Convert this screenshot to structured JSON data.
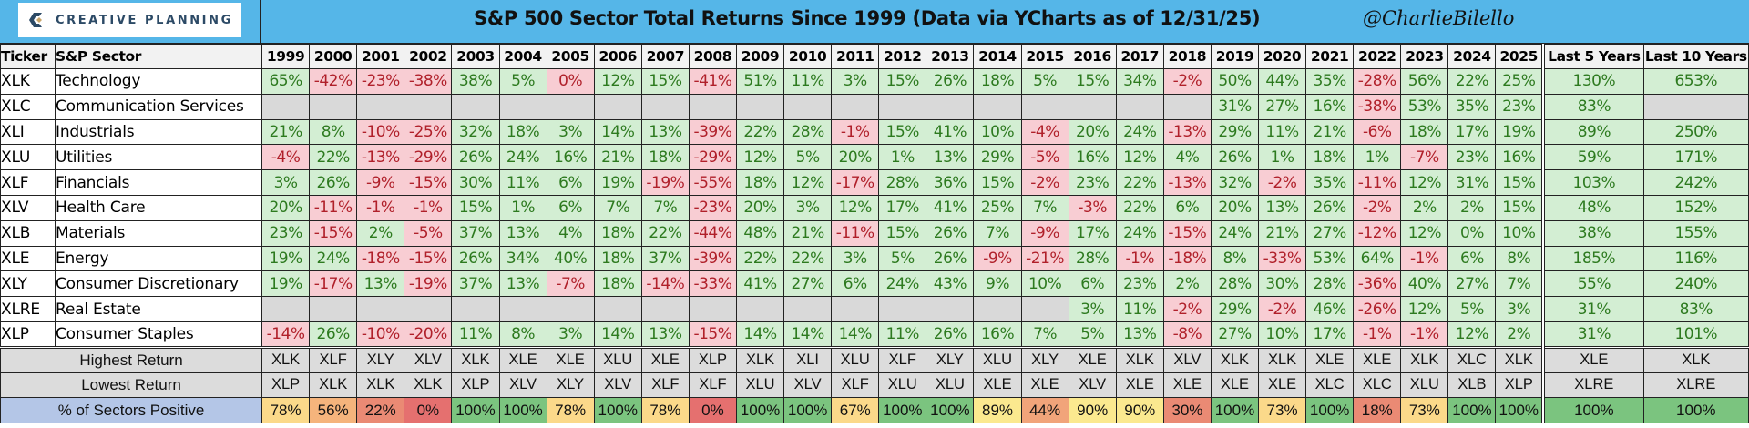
{
  "header": {
    "logo_text": "CREATIVE PLANNING",
    "title": "S&P 500 Sector Total Returns Since 1999 (Data via YCharts as of 12/31/25)",
    "handle": "@CharlieBilello"
  },
  "table": {
    "col_ticker": "Ticker",
    "col_sector": "S&P Sector",
    "years": [
      "1999",
      "2000",
      "2001",
      "2002",
      "2003",
      "2004",
      "2005",
      "2006",
      "2007",
      "2008",
      "2009",
      "2010",
      "2011",
      "2012",
      "2013",
      "2014",
      "2015",
      "2016",
      "2017",
      "2018",
      "2019",
      "2020",
      "2021",
      "2022",
      "2023",
      "2024",
      "2025"
    ],
    "col_last5": "Last 5 Years",
    "col_last10": "Last 10 Years",
    "summary_labels": {
      "highest": "Highest Return",
      "lowest": "Lowest Return",
      "pct_positive": "% of Sectors Positive"
    }
  },
  "colors": {
    "title_bar": "#55b6e8",
    "positive_bg": "#d3eed3",
    "positive_text": "#2d7a1f",
    "negative_bg": "#f8cdd3",
    "negative_text": "#b0202a",
    "no_data": "#d9d9d9",
    "pct_label_bg": "#b4c6e7"
  },
  "chart_data": {
    "type": "table",
    "title": "S&P 500 Sector Total Returns Since 1999 (Data via YCharts as of 12/31/25)",
    "source_note": "@CharlieBilello",
    "columns": [
      "Ticker",
      "S&P Sector",
      "1999",
      "2000",
      "2001",
      "2002",
      "2003",
      "2004",
      "2005",
      "2006",
      "2007",
      "2008",
      "2009",
      "2010",
      "2011",
      "2012",
      "2013",
      "2014",
      "2015",
      "2016",
      "2017",
      "2018",
      "2019",
      "2020",
      "2021",
      "2022",
      "2023",
      "2024",
      "2025",
      "Last 5 Years",
      "Last 10 Years"
    ],
    "rows": [
      {
        "ticker": "XLK",
        "sector": "Technology",
        "values": [
          "65%",
          "-42%",
          "-23%",
          "-38%",
          "38%",
          "5%",
          "0%",
          "12%",
          "15%",
          "-41%",
          "51%",
          "11%",
          "3%",
          "15%",
          "26%",
          "18%",
          "5%",
          "15%",
          "34%",
          "-2%",
          "50%",
          "44%",
          "35%",
          "-28%",
          "56%",
          "22%",
          "25%"
        ],
        "last5": "130%",
        "last10": "653%",
        "neg_zero": [
          6
        ]
      },
      {
        "ticker": "XLC",
        "sector": "Communication Services",
        "values": [
          "",
          "",
          "",
          "",
          "",
          "",
          "",
          "",
          "",
          "",
          "",
          "",
          "",
          "",
          "",
          "",
          "",
          "",
          "",
          "",
          "31%",
          "27%",
          "16%",
          "-38%",
          "53%",
          "35%",
          "23%"
        ],
        "last5": "83%",
        "last10": ""
      },
      {
        "ticker": "XLI",
        "sector": "Industrials",
        "values": [
          "21%",
          "8%",
          "-10%",
          "-25%",
          "32%",
          "18%",
          "3%",
          "14%",
          "13%",
          "-39%",
          "22%",
          "28%",
          "-1%",
          "15%",
          "41%",
          "10%",
          "-4%",
          "20%",
          "24%",
          "-13%",
          "29%",
          "11%",
          "21%",
          "-6%",
          "18%",
          "17%",
          "19%"
        ],
        "last5": "89%",
        "last10": "250%"
      },
      {
        "ticker": "XLU",
        "sector": "Utilities",
        "values": [
          "-4%",
          "22%",
          "-13%",
          "-29%",
          "26%",
          "24%",
          "16%",
          "21%",
          "18%",
          "-29%",
          "12%",
          "5%",
          "20%",
          "1%",
          "13%",
          "29%",
          "-5%",
          "16%",
          "12%",
          "4%",
          "26%",
          "1%",
          "18%",
          "1%",
          "-7%",
          "23%",
          "16%"
        ],
        "last5": "59%",
        "last10": "171%"
      },
      {
        "ticker": "XLF",
        "sector": "Financials",
        "values": [
          "3%",
          "26%",
          "-9%",
          "-15%",
          "30%",
          "11%",
          "6%",
          "19%",
          "-19%",
          "-55%",
          "18%",
          "12%",
          "-17%",
          "28%",
          "36%",
          "15%",
          "-2%",
          "23%",
          "22%",
          "-13%",
          "32%",
          "-2%",
          "35%",
          "-11%",
          "12%",
          "31%",
          "15%"
        ],
        "last5": "103%",
        "last10": "242%"
      },
      {
        "ticker": "XLV",
        "sector": "Health Care",
        "values": [
          "20%",
          "-11%",
          "-1%",
          "-1%",
          "15%",
          "1%",
          "6%",
          "7%",
          "7%",
          "-23%",
          "20%",
          "3%",
          "12%",
          "17%",
          "41%",
          "25%",
          "7%",
          "-3%",
          "22%",
          "6%",
          "20%",
          "13%",
          "26%",
          "-2%",
          "2%",
          "2%",
          "15%"
        ],
        "last5": "48%",
        "last10": "152%"
      },
      {
        "ticker": "XLB",
        "sector": "Materials",
        "values": [
          "23%",
          "-15%",
          "2%",
          "-5%",
          "37%",
          "13%",
          "4%",
          "18%",
          "22%",
          "-44%",
          "48%",
          "21%",
          "-11%",
          "15%",
          "26%",
          "7%",
          "-9%",
          "17%",
          "24%",
          "-15%",
          "24%",
          "21%",
          "27%",
          "-12%",
          "12%",
          "0%",
          "10%"
        ],
        "last5": "38%",
        "last10": "155%"
      },
      {
        "ticker": "XLE",
        "sector": "Energy",
        "values": [
          "19%",
          "24%",
          "-18%",
          "-15%",
          "26%",
          "34%",
          "40%",
          "18%",
          "37%",
          "-39%",
          "22%",
          "22%",
          "3%",
          "5%",
          "26%",
          "-9%",
          "-21%",
          "28%",
          "-1%",
          "-18%",
          "8%",
          "-33%",
          "53%",
          "64%",
          "-1%",
          "6%",
          "8%"
        ],
        "last5": "185%",
        "last10": "116%"
      },
      {
        "ticker": "XLY",
        "sector": "Consumer Discretionary",
        "values": [
          "19%",
          "-17%",
          "13%",
          "-19%",
          "37%",
          "13%",
          "-7%",
          "18%",
          "-14%",
          "-33%",
          "41%",
          "27%",
          "6%",
          "24%",
          "43%",
          "9%",
          "10%",
          "6%",
          "23%",
          "2%",
          "28%",
          "30%",
          "28%",
          "-36%",
          "40%",
          "27%",
          "7%"
        ],
        "last5": "55%",
        "last10": "240%"
      },
      {
        "ticker": "XLRE",
        "sector": "Real Estate",
        "values": [
          "",
          "",
          "",
          "",
          "",
          "",
          "",
          "",
          "",
          "",
          "",
          "",
          "",
          "",
          "",
          "",
          "",
          "3%",
          "11%",
          "-2%",
          "29%",
          "-2%",
          "46%",
          "-26%",
          "12%",
          "5%",
          "3%"
        ],
        "last5": "31%",
        "last10": "83%"
      },
      {
        "ticker": "XLP",
        "sector": "Consumer Staples",
        "values": [
          "-14%",
          "26%",
          "-10%",
          "-20%",
          "11%",
          "8%",
          "3%",
          "14%",
          "13%",
          "-15%",
          "14%",
          "14%",
          "14%",
          "11%",
          "26%",
          "16%",
          "7%",
          "5%",
          "13%",
          "-8%",
          "27%",
          "10%",
          "17%",
          "-1%",
          "-1%",
          "12%",
          "2%"
        ],
        "last5": "31%",
        "last10": "101%"
      }
    ],
    "summary": {
      "highest": {
        "values": [
          "XLK",
          "XLF",
          "XLY",
          "XLV",
          "XLK",
          "XLE",
          "XLE",
          "XLU",
          "XLE",
          "XLP",
          "XLK",
          "XLI",
          "XLU",
          "XLF",
          "XLY",
          "XLU",
          "XLY",
          "XLE",
          "XLK",
          "XLV",
          "XLK",
          "XLK",
          "XLE",
          "XLE",
          "XLK",
          "XLC",
          "XLK"
        ],
        "last5": "XLE",
        "last10": "XLK"
      },
      "lowest": {
        "values": [
          "XLP",
          "XLK",
          "XLK",
          "XLK",
          "XLP",
          "XLV",
          "XLY",
          "XLV",
          "XLF",
          "XLF",
          "XLU",
          "XLV",
          "XLF",
          "XLU",
          "XLU",
          "XLE",
          "XLE",
          "XLV",
          "XLE",
          "XLE",
          "XLE",
          "XLE",
          "XLC",
          "XLC",
          "XLU",
          "XLB",
          "XLP"
        ],
        "last5": "XLRE",
        "last10": "XLRE"
      },
      "pct_positive": {
        "values": [
          "78%",
          "56%",
          "22%",
          "0%",
          "100%",
          "100%",
          "78%",
          "100%",
          "78%",
          "0%",
          "100%",
          "100%",
          "67%",
          "100%",
          "100%",
          "89%",
          "44%",
          "90%",
          "90%",
          "30%",
          "100%",
          "73%",
          "100%",
          "18%",
          "73%",
          "100%",
          "100%"
        ],
        "last5": "100%",
        "last10": "100%"
      }
    }
  }
}
